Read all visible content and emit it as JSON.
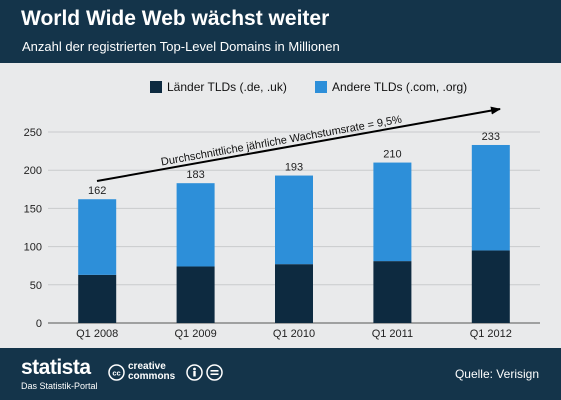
{
  "header": {
    "title": "World Wide Web wächst weiter",
    "subtitle": "Anzahl der registrierten Top-Level Domains in Millionen"
  },
  "footer": {
    "brand": "statista",
    "tagline": "Das Statistik-Portal",
    "cc_line1": "creative",
    "cc_line2": "commons",
    "source": "Quelle: Verisign"
  },
  "colors": {
    "header_bg": "#14344a",
    "body_bg": "#e9eaeb",
    "country_tlds": "#0d2a40",
    "other_tlds": "#2d8fd9"
  },
  "chart_data": {
    "type": "bar",
    "stacked": true,
    "categories": [
      "Q1 2008",
      "Q1 2009",
      "Q1 2010",
      "Q1 2011",
      "Q1 2012"
    ],
    "series": [
      {
        "name": "Länder TLDs (.de, .uk)",
        "values": [
          63,
          74,
          77,
          81,
          95
        ]
      },
      {
        "name": "Andere TLDs (.com, .org)",
        "values": [
          99,
          109,
          116,
          129,
          138
        ]
      }
    ],
    "totals": [
      "162",
      "183",
      "193",
      "210",
      "233"
    ],
    "ylim": [
      0,
      250
    ],
    "yticks": [
      "0",
      "50",
      "100",
      "150",
      "200",
      "250"
    ],
    "grid": true,
    "legend_position": "top",
    "annotation": "Durchschnittliche jährliche Wachstumsrate = 9,5%"
  }
}
